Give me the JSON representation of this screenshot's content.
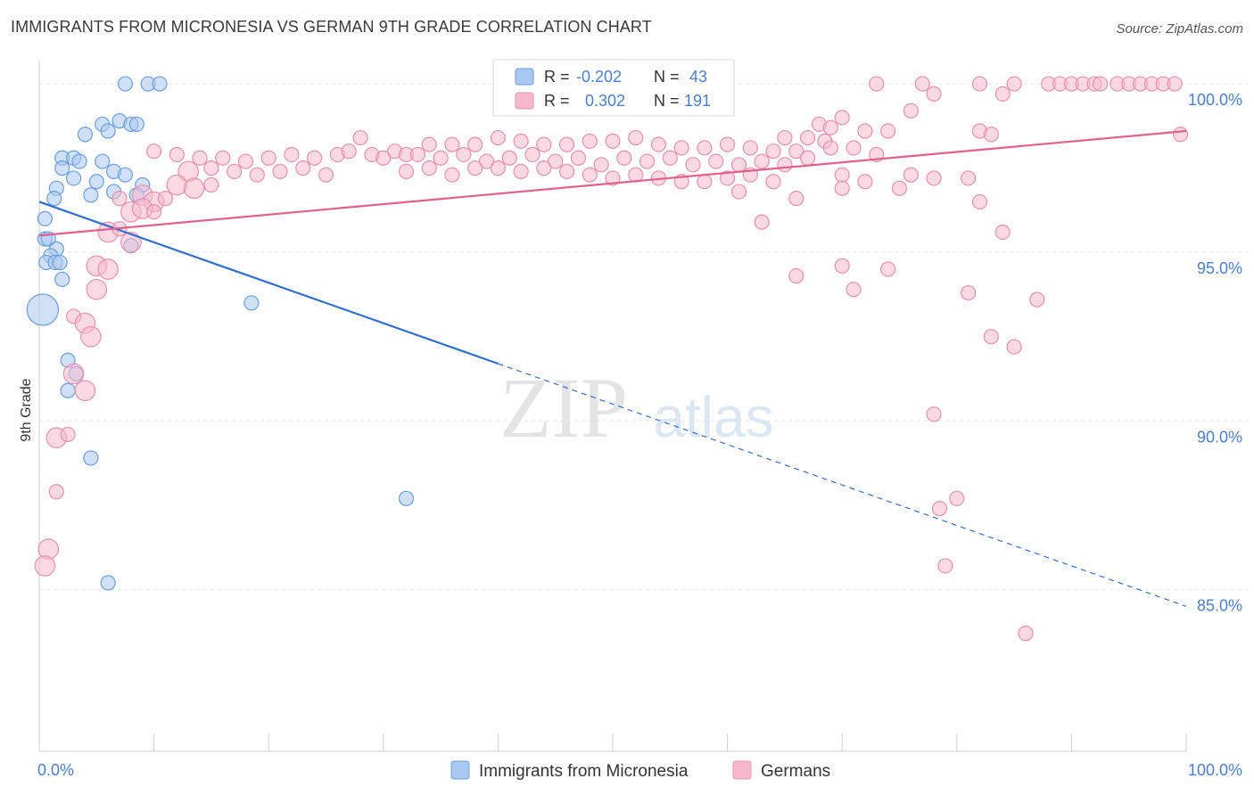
{
  "header": {
    "title": "IMMIGRANTS FROM MICRONESIA VS GERMAN 9TH GRADE CORRELATION CHART",
    "source": "Source: ZipAtlas.com"
  },
  "watermark": {
    "zip": "ZIP",
    "atlas": "atlas"
  },
  "colors": {
    "blue_fill": "#a9c8f0",
    "blue_stroke": "#6a9ee0",
    "blue_line": "#2f6fd0",
    "pink_fill": "#f6b9cc",
    "pink_stroke": "#e890ad",
    "pink_line": "#e0608e",
    "axis_label": "#4a7fd0",
    "grid": "#e6e6e6"
  },
  "legend_stats": {
    "r_label": "R =",
    "n_label": "N =",
    "rows": [
      {
        "r": "-0.202",
        "n": "43"
      },
      {
        "r": "0.302",
        "n": "191"
      }
    ]
  },
  "chart_data": {
    "type": "scatter",
    "ylabel": "9th Grade",
    "xlim": [
      0,
      100
    ],
    "ylim": [
      80.2,
      100.9
    ],
    "x_tick_labels": [
      "0.0%",
      "100.0%"
    ],
    "y_ticks": [
      {
        "value": 100,
        "label": "100.0%"
      },
      {
        "value": 95,
        "label": "95.0%"
      },
      {
        "value": 90,
        "label": "90.0%"
      },
      {
        "value": 85,
        "label": "85.0%"
      }
    ],
    "grid": true,
    "legend_position": "bottom",
    "series": [
      {
        "name": "Immigrants from Micronesia",
        "r": -0.202,
        "n": 43,
        "trend": {
          "x0": 0,
          "y0": 96.5,
          "x1": 100,
          "y1": 84.5,
          "solid_until_x": 40
        },
        "points": [
          [
            7.5,
            100,
            1
          ],
          [
            9.5,
            100,
            1
          ],
          [
            10.5,
            100,
            1
          ],
          [
            4,
            98.5,
            1
          ],
          [
            5.5,
            98.8,
            1
          ],
          [
            6,
            98.6,
            1
          ],
          [
            7,
            98.9,
            1
          ],
          [
            8,
            98.8,
            1
          ],
          [
            8.5,
            98.8,
            1
          ],
          [
            2,
            97.8,
            1
          ],
          [
            3,
            97.8,
            1
          ],
          [
            3.5,
            97.7,
            1
          ],
          [
            5.5,
            97.7,
            1
          ],
          [
            2,
            97.5,
            1
          ],
          [
            6.5,
            97.4,
            1
          ],
          [
            7.5,
            97.3,
            1
          ],
          [
            3,
            97.2,
            1
          ],
          [
            5,
            97.1,
            1
          ],
          [
            1.5,
            96.9,
            1
          ],
          [
            9,
            97,
            1
          ],
          [
            1.3,
            96.6,
            1
          ],
          [
            4.5,
            96.7,
            1
          ],
          [
            6.5,
            96.8,
            1
          ],
          [
            8.5,
            96.7,
            1
          ],
          [
            0.5,
            96,
            1
          ],
          [
            0.5,
            95.4,
            1
          ],
          [
            0.8,
            95.4,
            1
          ],
          [
            1.5,
            95.1,
            1
          ],
          [
            8,
            95.2,
            1
          ],
          [
            1,
            94.9,
            1
          ],
          [
            0.6,
            94.7,
            1
          ],
          [
            1.4,
            94.7,
            1
          ],
          [
            1.8,
            94.7,
            1
          ],
          [
            2,
            94.2,
            1
          ],
          [
            0.3,
            93.3,
            2.2
          ],
          [
            18.5,
            93.5,
            1
          ],
          [
            2.5,
            91.8,
            1
          ],
          [
            3.2,
            91.4,
            1
          ],
          [
            2.5,
            90.9,
            1
          ],
          [
            4.5,
            88.9,
            1
          ],
          [
            32,
            87.7,
            1
          ],
          [
            6,
            85.2,
            1
          ]
        ]
      },
      {
        "name": "Germans",
        "r": 0.302,
        "n": 191,
        "trend": {
          "x0": 0,
          "y0": 95.5,
          "x1": 100,
          "y1": 98.6
        },
        "points": [
          [
            73,
            100,
            1
          ],
          [
            77,
            100,
            1
          ],
          [
            82,
            100,
            1
          ],
          [
            85,
            100,
            1
          ],
          [
            88,
            100,
            1
          ],
          [
            89,
            100,
            1
          ],
          [
            90,
            100,
            1
          ],
          [
            91,
            100,
            1
          ],
          [
            92,
            100,
            1
          ],
          [
            92.5,
            100,
            1
          ],
          [
            94,
            100,
            1
          ],
          [
            95,
            100,
            1
          ],
          [
            96,
            100,
            1
          ],
          [
            97,
            100,
            1
          ],
          [
            98,
            100,
            1
          ],
          [
            99,
            100,
            1
          ],
          [
            78,
            99.7,
            1
          ],
          [
            84,
            99.7,
            1
          ],
          [
            76,
            99.2,
            1
          ],
          [
            70,
            99,
            1
          ],
          [
            68,
            98.8,
            1
          ],
          [
            69,
            98.7,
            1
          ],
          [
            72,
            98.6,
            1
          ],
          [
            74,
            98.6,
            1
          ],
          [
            82,
            98.6,
            1
          ],
          [
            83,
            98.5,
            1
          ],
          [
            99.5,
            98.5,
            1
          ],
          [
            67,
            98.4,
            1
          ],
          [
            68.5,
            98.3,
            1
          ],
          [
            65,
            98.4,
            1
          ],
          [
            28,
            98.4,
            1
          ],
          [
            34,
            98.2,
            1
          ],
          [
            36,
            98.2,
            1
          ],
          [
            38,
            98.2,
            1
          ],
          [
            40,
            98.4,
            1
          ],
          [
            42,
            98.3,
            1
          ],
          [
            44,
            98.2,
            1
          ],
          [
            46,
            98.2,
            1
          ],
          [
            48,
            98.3,
            1
          ],
          [
            50,
            98.3,
            1
          ],
          [
            52,
            98.4,
            1
          ],
          [
            54,
            98.2,
            1
          ],
          [
            56,
            98.1,
            1
          ],
          [
            58,
            98.1,
            1
          ],
          [
            60,
            98.2,
            1
          ],
          [
            62,
            98.1,
            1
          ],
          [
            64,
            98,
            1
          ],
          [
            66,
            98,
            1
          ],
          [
            69,
            98.1,
            1
          ],
          [
            71,
            98.1,
            1
          ],
          [
            10,
            98,
            1
          ],
          [
            12,
            97.9,
            1
          ],
          [
            14,
            97.8,
            1
          ],
          [
            16,
            97.8,
            1
          ],
          [
            18,
            97.7,
            1
          ],
          [
            20,
            97.8,
            1
          ],
          [
            22,
            97.9,
            1
          ],
          [
            24,
            97.8,
            1
          ],
          [
            26,
            97.9,
            1
          ],
          [
            27,
            98,
            1
          ],
          [
            29,
            97.9,
            1
          ],
          [
            30,
            97.8,
            1
          ],
          [
            31,
            98,
            1
          ],
          [
            32,
            97.9,
            1
          ],
          [
            33,
            97.9,
            1
          ],
          [
            35,
            97.8,
            1
          ],
          [
            37,
            97.9,
            1
          ],
          [
            39,
            97.7,
            1
          ],
          [
            41,
            97.8,
            1
          ],
          [
            43,
            97.9,
            1
          ],
          [
            45,
            97.7,
            1
          ],
          [
            47,
            97.8,
            1
          ],
          [
            49,
            97.6,
            1
          ],
          [
            51,
            97.8,
            1
          ],
          [
            53,
            97.7,
            1
          ],
          [
            55,
            97.8,
            1
          ],
          [
            57,
            97.6,
            1
          ],
          [
            59,
            97.7,
            1
          ],
          [
            61,
            97.6,
            1
          ],
          [
            63,
            97.7,
            1
          ],
          [
            65,
            97.6,
            1
          ],
          [
            67,
            97.8,
            1
          ],
          [
            73,
            97.9,
            1
          ],
          [
            13,
            97.4,
            1.4
          ],
          [
            15,
            97.5,
            1
          ],
          [
            17,
            97.4,
            1
          ],
          [
            19,
            97.3,
            1
          ],
          [
            21,
            97.4,
            1
          ],
          [
            23,
            97.5,
            1
          ],
          [
            25,
            97.3,
            1
          ],
          [
            32,
            97.4,
            1
          ],
          [
            34,
            97.5,
            1
          ],
          [
            36,
            97.3,
            1
          ],
          [
            38,
            97.5,
            1
          ],
          [
            40,
            97.5,
            1
          ],
          [
            42,
            97.4,
            1
          ],
          [
            44,
            97.5,
            1
          ],
          [
            46,
            97.4,
            1
          ],
          [
            48,
            97.3,
            1
          ],
          [
            50,
            97.2,
            1
          ],
          [
            52,
            97.3,
            1
          ],
          [
            54,
            97.2,
            1
          ],
          [
            56,
            97.1,
            1
          ],
          [
            58,
            97.1,
            1
          ],
          [
            60,
            97.2,
            1
          ],
          [
            62,
            97.3,
            1
          ],
          [
            64,
            97.1,
            1
          ],
          [
            70,
            97.3,
            1
          ],
          [
            72,
            97.1,
            1
          ],
          [
            76,
            97.3,
            1
          ],
          [
            78,
            97.2,
            1
          ],
          [
            81,
            97.2,
            1
          ],
          [
            12,
            97,
            1.4
          ],
          [
            13.5,
            96.9,
            1.4
          ],
          [
            15,
            97,
            1
          ],
          [
            7,
            96.6,
            1
          ],
          [
            9,
            96.7,
            1.4
          ],
          [
            10,
            96.5,
            1.4
          ],
          [
            11,
            96.6,
            1
          ],
          [
            61,
            96.8,
            1
          ],
          [
            66,
            96.6,
            1
          ],
          [
            70,
            96.9,
            1
          ],
          [
            75,
            96.9,
            1
          ],
          [
            82,
            96.5,
            1
          ],
          [
            8,
            96.2,
            1.4
          ],
          [
            9,
            96.3,
            1.4
          ],
          [
            10,
            96.2,
            1
          ],
          [
            6,
            95.6,
            1.4
          ],
          [
            7,
            95.7,
            1
          ],
          [
            8,
            95.3,
            1.4
          ],
          [
            63,
            95.9,
            1
          ],
          [
            84,
            95.6,
            1
          ],
          [
            5,
            94.6,
            1.4
          ],
          [
            6,
            94.5,
            1.4
          ],
          [
            66,
            94.3,
            1
          ],
          [
            70,
            94.6,
            1
          ],
          [
            74,
            94.5,
            1
          ],
          [
            5,
            93.9,
            1.4
          ],
          [
            71,
            93.9,
            1
          ],
          [
            81,
            93.8,
            1
          ],
          [
            87,
            93.6,
            1
          ],
          [
            3,
            93.1,
            1
          ],
          [
            4,
            92.9,
            1.4
          ],
          [
            4.5,
            92.5,
            1.4
          ],
          [
            83,
            92.5,
            1
          ],
          [
            85,
            92.2,
            1
          ],
          [
            3,
            91.4,
            1.4
          ],
          [
            4,
            90.9,
            1.4
          ],
          [
            1.5,
            89.5,
            1.4
          ],
          [
            2.5,
            89.6,
            1
          ],
          [
            78,
            90.2,
            1
          ],
          [
            1.5,
            87.9,
            1
          ],
          [
            78.5,
            87.4,
            1
          ],
          [
            80,
            87.7,
            1
          ],
          [
            0.8,
            86.2,
            1.4
          ],
          [
            0.5,
            85.7,
            1.4
          ],
          [
            79,
            85.7,
            1
          ],
          [
            86,
            83.7,
            1
          ]
        ]
      }
    ]
  }
}
